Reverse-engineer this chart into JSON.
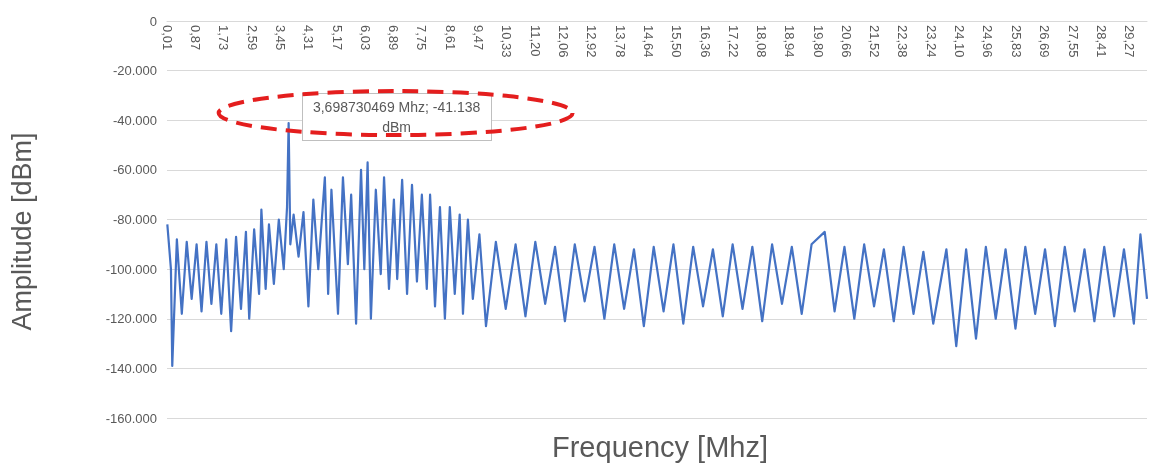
{
  "chart_data": {
    "type": "line",
    "xlabel": "Frequency [Mhz]",
    "ylabel": "Amplitude [dBm]",
    "annotations": [
      {
        "text": "3,698730469 Mhz; -41.138 dBm",
        "x": 3.6987,
        "y": -41138
      }
    ],
    "x": [
      0.01,
      0.12,
      0.16,
      0.3,
      0.45,
      0.6,
      0.75,
      0.9,
      1.05,
      1.2,
      1.35,
      1.5,
      1.65,
      1.8,
      1.95,
      2.1,
      2.25,
      2.4,
      2.5,
      2.65,
      2.8,
      2.87,
      3.0,
      3.1,
      3.25,
      3.4,
      3.55,
      3.65,
      3.6987,
      3.75,
      3.85,
      4.0,
      4.15,
      4.3,
      4.45,
      4.6,
      4.8,
      4.9,
      5.0,
      5.2,
      5.35,
      5.5,
      5.6,
      5.75,
      5.9,
      6.0,
      6.1,
      6.2,
      6.35,
      6.5,
      6.6,
      6.75,
      6.9,
      7.0,
      7.15,
      7.3,
      7.45,
      7.6,
      7.75,
      7.9,
      8.0,
      8.15,
      8.3,
      8.45,
      8.6,
      8.75,
      8.9,
      9.0,
      9.15,
      9.3,
      9.5,
      9.7,
      10.0,
      10.3,
      10.6,
      10.9,
      11.2,
      11.5,
      11.8,
      12.1,
      12.4,
      12.7,
      13.0,
      13.3,
      13.6,
      13.9,
      14.2,
      14.5,
      14.8,
      15.1,
      15.4,
      15.7,
      16.0,
      16.3,
      16.6,
      16.9,
      17.2,
      17.5,
      17.8,
      18.1,
      18.4,
      18.7,
      19.0,
      19.3,
      19.6,
      20.0,
      20.3,
      20.6,
      20.9,
      21.2,
      21.5,
      21.8,
      22.1,
      22.4,
      22.7,
      23.0,
      23.3,
      23.7,
      24.0,
      24.3,
      24.6,
      24.9,
      25.2,
      25.5,
      25.8,
      26.1,
      26.4,
      26.7,
      27.0,
      27.3,
      27.6,
      27.9,
      28.2,
      28.5,
      28.8,
      29.1,
      29.4,
      29.6,
      29.8
    ],
    "values": [
      -82000,
      -100000,
      -139000,
      -88000,
      -118000,
      -89000,
      -112000,
      -90000,
      -117000,
      -89000,
      -114000,
      -90000,
      -118000,
      -88000,
      -125000,
      -87000,
      -116000,
      -85000,
      -120000,
      -84000,
      -110000,
      -76000,
      -108000,
      -82000,
      -106000,
      -80000,
      -100000,
      -75000,
      -41138,
      -90000,
      -78000,
      -95000,
      -77000,
      -115000,
      -72000,
      -100000,
      -63000,
      -110000,
      -68000,
      -118000,
      -63000,
      -98000,
      -70000,
      -122000,
      -60000,
      -100000,
      -57000,
      -120000,
      -68000,
      -102000,
      -63000,
      -108000,
      -72000,
      -104000,
      -64000,
      -110000,
      -66000,
      -105000,
      -70000,
      -108000,
      -70000,
      -115000,
      -75000,
      -120000,
      -75000,
      -110000,
      -78000,
      -118000,
      -80000,
      -112000,
      -86000,
      -123000,
      -89000,
      -116000,
      -90000,
      -119000,
      -89000,
      -114000,
      -91000,
      -121000,
      -90000,
      -113000,
      -91000,
      -120000,
      -90000,
      -116000,
      -92000,
      -123000,
      -91000,
      -117000,
      -90000,
      -122000,
      -91000,
      -115000,
      -92000,
      -119000,
      -90000,
      -116000,
      -91000,
      -121000,
      -90000,
      -114000,
      -91000,
      -118000,
      -90000,
      -85000,
      -117000,
      -91000,
      -120000,
      -90000,
      -115000,
      -92000,
      -121000,
      -91000,
      -118000,
      -93000,
      -122000,
      -92000,
      -131000,
      -92000,
      -128000,
      -91000,
      -120000,
      -92000,
      -124000,
      -91000,
      -118000,
      -92000,
      -123000,
      -91000,
      -117000,
      -92000,
      -121000,
      -91000,
      -119000,
      -92000,
      -122000,
      -86000,
      -112000
    ],
    "color": "#4472c4",
    "marker": "none",
    "xlim": [
      0,
      29.8
    ],
    "xticks": [
      {
        "value": 0.01,
        "label": "0,01"
      },
      {
        "value": 0.87,
        "label": "0,87"
      },
      {
        "value": 1.73,
        "label": "1,73"
      },
      {
        "value": 2.59,
        "label": "2,59"
      },
      {
        "value": 3.45,
        "label": "3,45"
      },
      {
        "value": 4.31,
        "label": "4,31"
      },
      {
        "value": 5.17,
        "label": "5,17"
      },
      {
        "value": 6.03,
        "label": "6,03"
      },
      {
        "value": 6.89,
        "label": "6,89"
      },
      {
        "value": 7.75,
        "label": "7,75"
      },
      {
        "value": 8.61,
        "label": "8,61"
      },
      {
        "value": 9.47,
        "label": "9,47"
      },
      {
        "value": 10.33,
        "label": "10,33"
      },
      {
        "value": 11.2,
        "label": "11,20"
      },
      {
        "value": 12.06,
        "label": "12,06"
      },
      {
        "value": 12.92,
        "label": "12,92"
      },
      {
        "value": 13.78,
        "label": "13,78"
      },
      {
        "value": 14.64,
        "label": "14,64"
      },
      {
        "value": 15.5,
        "label": "15,50"
      },
      {
        "value": 16.36,
        "label": "16,36"
      },
      {
        "value": 17.22,
        "label": "17,22"
      },
      {
        "value": 18.08,
        "label": "18,08"
      },
      {
        "value": 18.94,
        "label": "18,94"
      },
      {
        "value": 19.8,
        "label": "19,80"
      },
      {
        "value": 20.66,
        "label": "20,66"
      },
      {
        "value": 21.52,
        "label": "21,52"
      },
      {
        "value": 22.38,
        "label": "22,38"
      },
      {
        "value": 23.24,
        "label": "23,24"
      },
      {
        "value": 24.1,
        "label": "24,10"
      },
      {
        "value": 24.96,
        "label": "24,96"
      },
      {
        "value": 25.83,
        "label": "25,83"
      },
      {
        "value": 26.69,
        "label": "26,69"
      },
      {
        "value": 27.55,
        "label": "27,55"
      },
      {
        "value": 28.41,
        "label": "28,41"
      },
      {
        "value": 29.27,
        "label": "29,27"
      }
    ],
    "ylim": [
      -160000,
      0
    ],
    "yticks": [
      0,
      {
        "value": -20000,
        "label": "-20.000"
      },
      {
        "value": -40000,
        "label": "-40.000"
      },
      {
        "value": -60000,
        "label": "-60.000"
      },
      {
        "value": -80000,
        "label": "-80.000"
      },
      {
        "value": -100000,
        "label": "-100.000"
      },
      {
        "value": -120000,
        "label": "-120.000"
      },
      {
        "value": -140000,
        "label": "-140.000"
      },
      {
        "value": -160000,
        "label": "-160.000"
      }
    ],
    "grid": "y"
  }
}
